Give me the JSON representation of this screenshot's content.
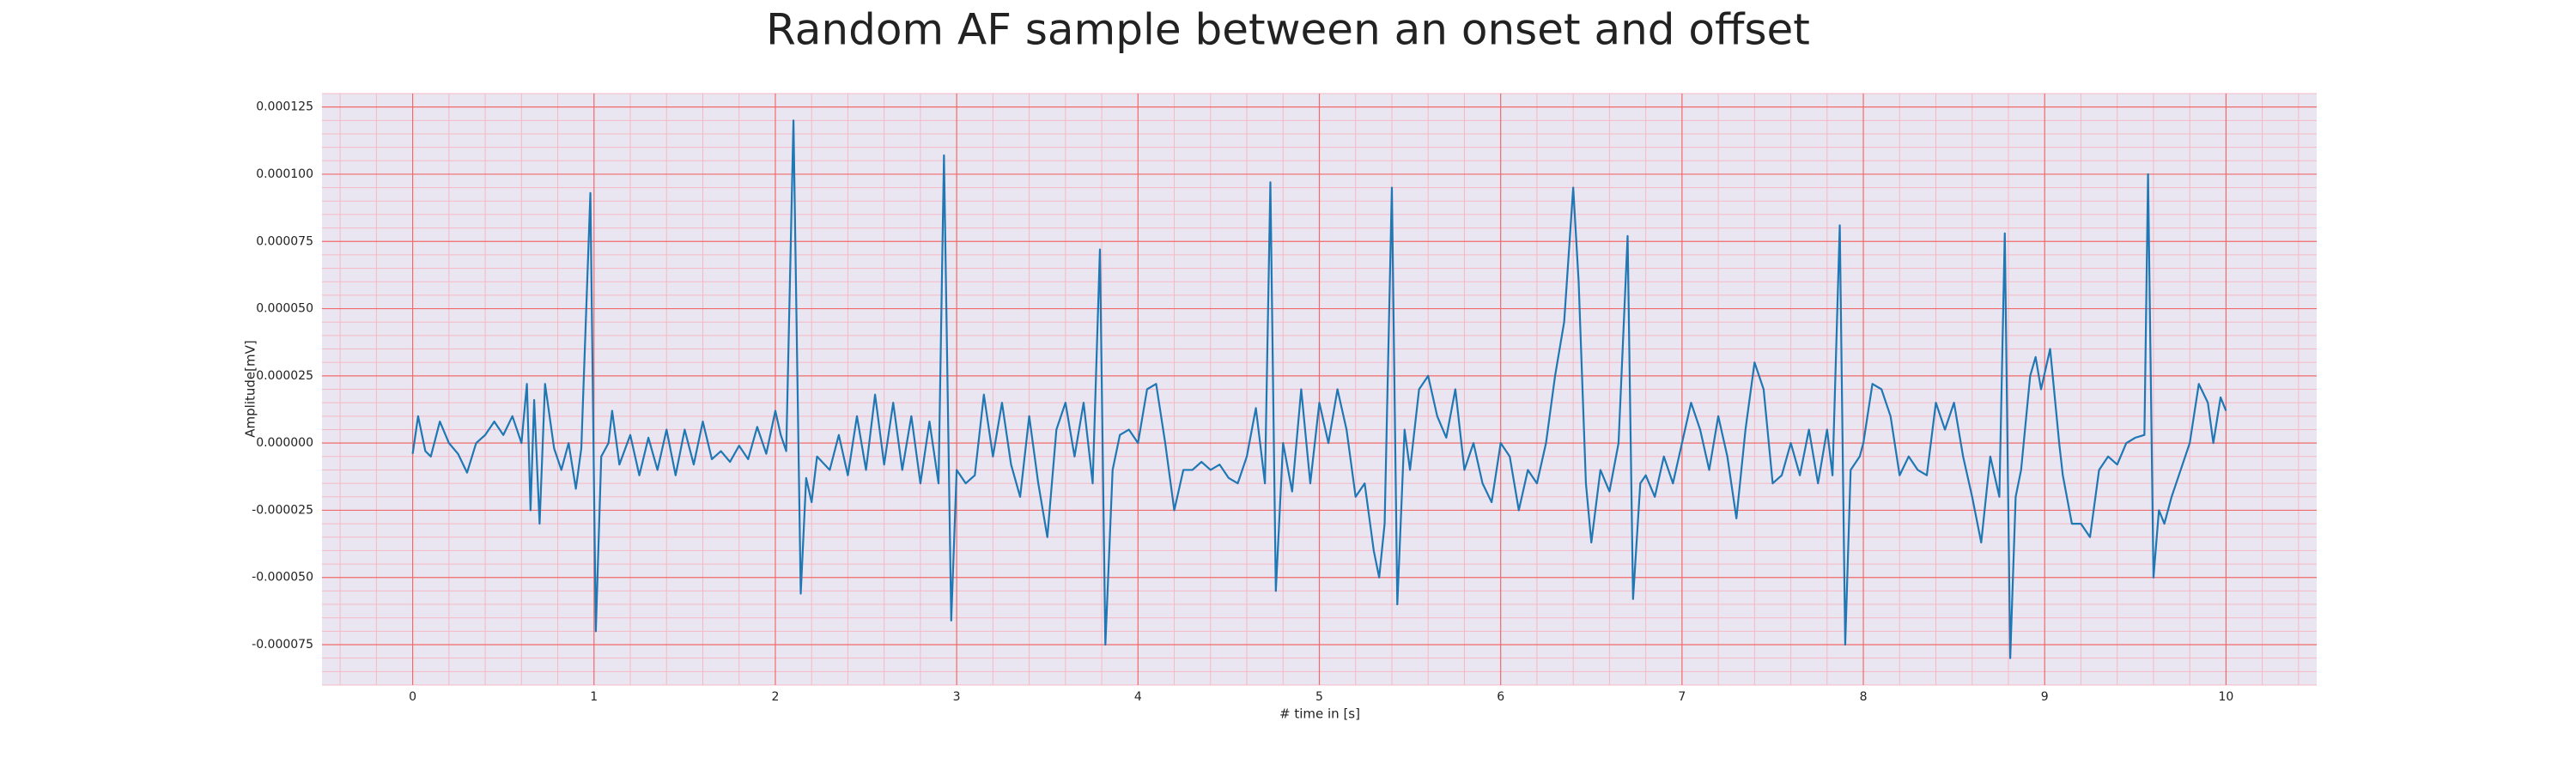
{
  "chart_data": {
    "type": "line",
    "title": "Random AF sample between an onset and offset",
    "xlabel": "# time in [s]",
    "ylabel": "Amplitude[mV]",
    "background": "#eae6f1",
    "grid": {
      "color": "#f06a6a",
      "minor_color": "#f4b8c4",
      "minor_divisions": 5
    },
    "xlim": [
      -0.5,
      10.5
    ],
    "ylim": [
      -9e-05,
      0.00013
    ],
    "xticks": [
      0,
      1,
      2,
      3,
      4,
      5,
      6,
      7,
      8,
      9,
      10
    ],
    "yticks": [
      {
        "value": -7.5e-05,
        "label": "-0.000075"
      },
      {
        "value": -5e-05,
        "label": "-0.000050"
      },
      {
        "value": -2.5e-05,
        "label": "-0.000025"
      },
      {
        "value": 0,
        "label": "0.000000"
      },
      {
        "value": 2.5e-05,
        "label": "0.000025"
      },
      {
        "value": 5e-05,
        "label": "0.000050"
      },
      {
        "value": 7.5e-05,
        "label": "0.000075"
      },
      {
        "value": 0.0001,
        "label": "0.000100"
      },
      {
        "value": 0.000125,
        "label": "0.000125"
      }
    ],
    "x": [
      0,
      0.03,
      0.07,
      0.1,
      0.15,
      0.2,
      0.25,
      0.3,
      0.35,
      0.4,
      0.45,
      0.5,
      0.55,
      0.6,
      0.63,
      0.65,
      0.67,
      0.7,
      0.73,
      0.78,
      0.82,
      0.86,
      0.9,
      0.93,
      0.98,
      1.01,
      1.04,
      1.08,
      1.1,
      1.14,
      1.2,
      1.25,
      1.3,
      1.35,
      1.4,
      1.45,
      1.5,
      1.55,
      1.6,
      1.65,
      1.7,
      1.75,
      1.8,
      1.85,
      1.9,
      1.95,
      2.0,
      2.03,
      2.06,
      2.1,
      2.14,
      2.17,
      2.2,
      2.23,
      2.3,
      2.35,
      2.4,
      2.45,
      2.5,
      2.55,
      2.6,
      2.65,
      2.7,
      2.75,
      2.8,
      2.85,
      2.9,
      2.93,
      2.97,
      3.0,
      3.05,
      3.1,
      3.15,
      3.2,
      3.25,
      3.3,
      3.35,
      3.4,
      3.45,
      3.5,
      3.55,
      3.6,
      3.65,
      3.7,
      3.75,
      3.79,
      3.82,
      3.86,
      3.9,
      3.95,
      4.0,
      4.05,
      4.1,
      4.15,
      4.2,
      4.25,
      4.3,
      4.35,
      4.4,
      4.45,
      4.5,
      4.55,
      4.6,
      4.65,
      4.7,
      4.73,
      4.76,
      4.8,
      4.85,
      4.9,
      4.95,
      5.0,
      5.05,
      5.1,
      5.15,
      5.2,
      5.25,
      5.3,
      5.33,
      5.36,
      5.4,
      5.43,
      5.47,
      5.5,
      5.55,
      5.6,
      5.65,
      5.7,
      5.75,
      5.8,
      5.85,
      5.9,
      5.95,
      6.0,
      6.05,
      6.1,
      6.15,
      6.2,
      6.25,
      6.3,
      6.35,
      6.4,
      6.43,
      6.47,
      6.5,
      6.55,
      6.6,
      6.65,
      6.7,
      6.73,
      6.77,
      6.8,
      6.85,
      6.9,
      6.95,
      7.0,
      7.05,
      7.1,
      7.15,
      7.2,
      7.25,
      7.3,
      7.35,
      7.4,
      7.45,
      7.5,
      7.55,
      7.6,
      7.65,
      7.7,
      7.75,
      7.8,
      7.83,
      7.87,
      7.9,
      7.93,
      7.98,
      8.0,
      8.05,
      8.1,
      8.15,
      8.2,
      8.25,
      8.3,
      8.35,
      8.4,
      8.45,
      8.5,
      8.55,
      8.6,
      8.65,
      8.7,
      8.75,
      8.78,
      8.81,
      8.84,
      8.87,
      8.92,
      8.95,
      8.98,
      9.03,
      9.08,
      9.1,
      9.15,
      9.2,
      9.25,
      9.3,
      9.35,
      9.4,
      9.45,
      9.5,
      9.55,
      9.57,
      9.6,
      9.63,
      9.66,
      9.7,
      9.75,
      9.8,
      9.85,
      9.9,
      9.93,
      9.97,
      10.0
    ],
    "series": [
      {
        "color": "#1f77b4",
        "values": [
          -4e-06,
          1e-05,
          -3e-06,
          -5e-06,
          8e-06,
          0,
          -4e-06,
          -1.1e-05,
          0,
          3e-06,
          8e-06,
          3e-06,
          1e-05,
          0,
          2.2e-05,
          -2.5e-05,
          1.6e-05,
          -3e-05,
          2.2e-05,
          -2e-06,
          -1e-05,
          0,
          -1.7e-05,
          -2e-06,
          9.3e-05,
          -7e-05,
          -5e-06,
          0,
          1.2e-05,
          -8e-06,
          3e-06,
          -1.2e-05,
          2e-06,
          -1e-05,
          5e-06,
          -1.2e-05,
          5e-06,
          -8e-06,
          8e-06,
          -6e-06,
          -3e-06,
          -7e-06,
          -1e-06,
          -6e-06,
          6e-06,
          -4e-06,
          1.2e-05,
          3e-06,
          -3e-06,
          0.00012,
          -5.6e-05,
          -1.3e-05,
          -2.2e-05,
          -5e-06,
          -1e-05,
          3e-06,
          -1.2e-05,
          1e-05,
          -1e-05,
          1.8e-05,
          -8e-06,
          1.5e-05,
          -1e-05,
          1e-05,
          -1.5e-05,
          8e-06,
          -1.5e-05,
          0.000107,
          -6.6e-05,
          -1e-05,
          -1.5e-05,
          -1.2e-05,
          1.8e-05,
          -5e-06,
          1.5e-05,
          -8e-06,
          -2e-05,
          1e-05,
          -1.5e-05,
          -3.5e-05,
          5e-06,
          1.5e-05,
          -5e-06,
          1.5e-05,
          -1.5e-05,
          7.2e-05,
          -7.5e-05,
          -1e-05,
          3e-06,
          5e-06,
          0,
          2e-05,
          2.2e-05,
          0,
          -2.5e-05,
          -1e-05,
          -1e-05,
          -7e-06,
          -1e-05,
          -8e-06,
          -1.3e-05,
          -1.5e-05,
          -5e-06,
          1.3e-05,
          -1.5e-05,
          9.7e-05,
          -5.5e-05,
          0,
          -1.8e-05,
          2e-05,
          -1.5e-05,
          1.5e-05,
          0,
          2e-05,
          5e-06,
          -2e-05,
          -1.5e-05,
          -4e-05,
          -5e-05,
          -3e-05,
          9.5e-05,
          -6e-05,
          5e-06,
          -1e-05,
          2e-05,
          2.5e-05,
          1e-05,
          2e-06,
          2e-05,
          -1e-05,
          0,
          -1.5e-05,
          -2.2e-05,
          0,
          -5e-06,
          -2.5e-05,
          -1e-05,
          -1.5e-05,
          0,
          2.5e-05,
          4.5e-05,
          9.5e-05,
          6e-05,
          -1.5e-05,
          -3.7e-05,
          -1e-05,
          -1.8e-05,
          0,
          7.7e-05,
          -5.8e-05,
          -1.5e-05,
          -1.2e-05,
          -2e-05,
          -5e-06,
          -1.5e-05,
          0,
          1.5e-05,
          5e-06,
          -1e-05,
          1e-05,
          -5e-06,
          -2.8e-05,
          5e-06,
          3e-05,
          2e-05,
          -1.5e-05,
          -1.2e-05,
          0,
          -1.2e-05,
          5e-06,
          -1.5e-05,
          5e-06,
          -1.2e-05,
          8.1e-05,
          -7.5e-05,
          -1e-05,
          -5e-06,
          0,
          2.2e-05,
          2e-05,
          1e-05,
          -1.2e-05,
          -5e-06,
          -1e-05,
          -1.2e-05,
          1.5e-05,
          5e-06,
          1.5e-05,
          -5e-06,
          -2e-05,
          -3.7e-05,
          -5e-06,
          -2e-05,
          7.8e-05,
          -8e-05,
          -2e-05,
          -1e-05,
          2.5e-05,
          3.2e-05,
          2e-05,
          3.5e-05,
          0,
          -1.2e-05,
          -3e-05,
          -3e-05,
          -3.5e-05,
          -1e-05,
          -5e-06,
          -8e-06,
          0,
          2e-06,
          3e-06,
          0.0001,
          -5e-05,
          -2.5e-05,
          -3e-05,
          -2e-05,
          -1e-05,
          0,
          2.2e-05,
          1.5e-05,
          0,
          1.7e-05,
          1.2e-05
        ]
      }
    ]
  }
}
